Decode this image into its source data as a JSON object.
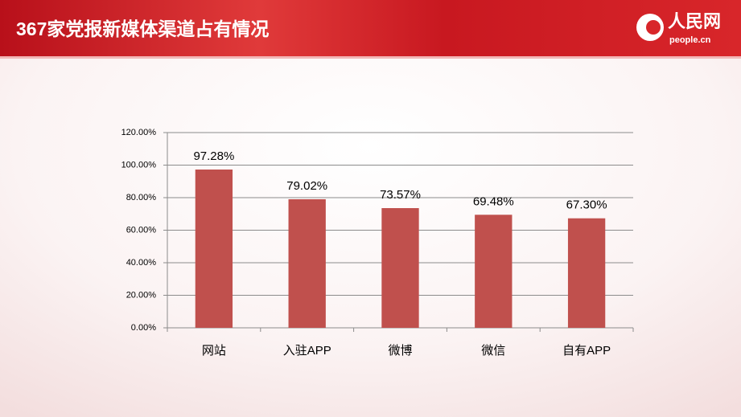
{
  "logo": {
    "name": "人民网",
    "url": "people.cn"
  },
  "chart_data": {
    "type": "bar",
    "title": "367家党报新媒体渠道占有情况",
    "categories": [
      "网站",
      "入驻APP",
      "微博",
      "微信",
      "自有APP"
    ],
    "values": [
      97.28,
      79.02,
      73.57,
      69.48,
      67.3
    ],
    "value_labels": [
      "97.28%",
      "79.02%",
      "73.57%",
      "69.48%",
      "67.30%"
    ],
    "color": "#c0504d",
    "ylim": [
      0,
      120
    ],
    "yticks": [
      {
        "value": 0,
        "label": "0.00%"
      },
      {
        "value": 20,
        "label": "20.00%"
      },
      {
        "value": 40,
        "label": "40.00%"
      },
      {
        "value": 60,
        "label": "60.00%"
      },
      {
        "value": 80,
        "label": "80.00%"
      },
      {
        "value": 100,
        "label": "100.00%"
      },
      {
        "value": 120,
        "label": "120.00%"
      }
    ],
    "grid": true
  }
}
